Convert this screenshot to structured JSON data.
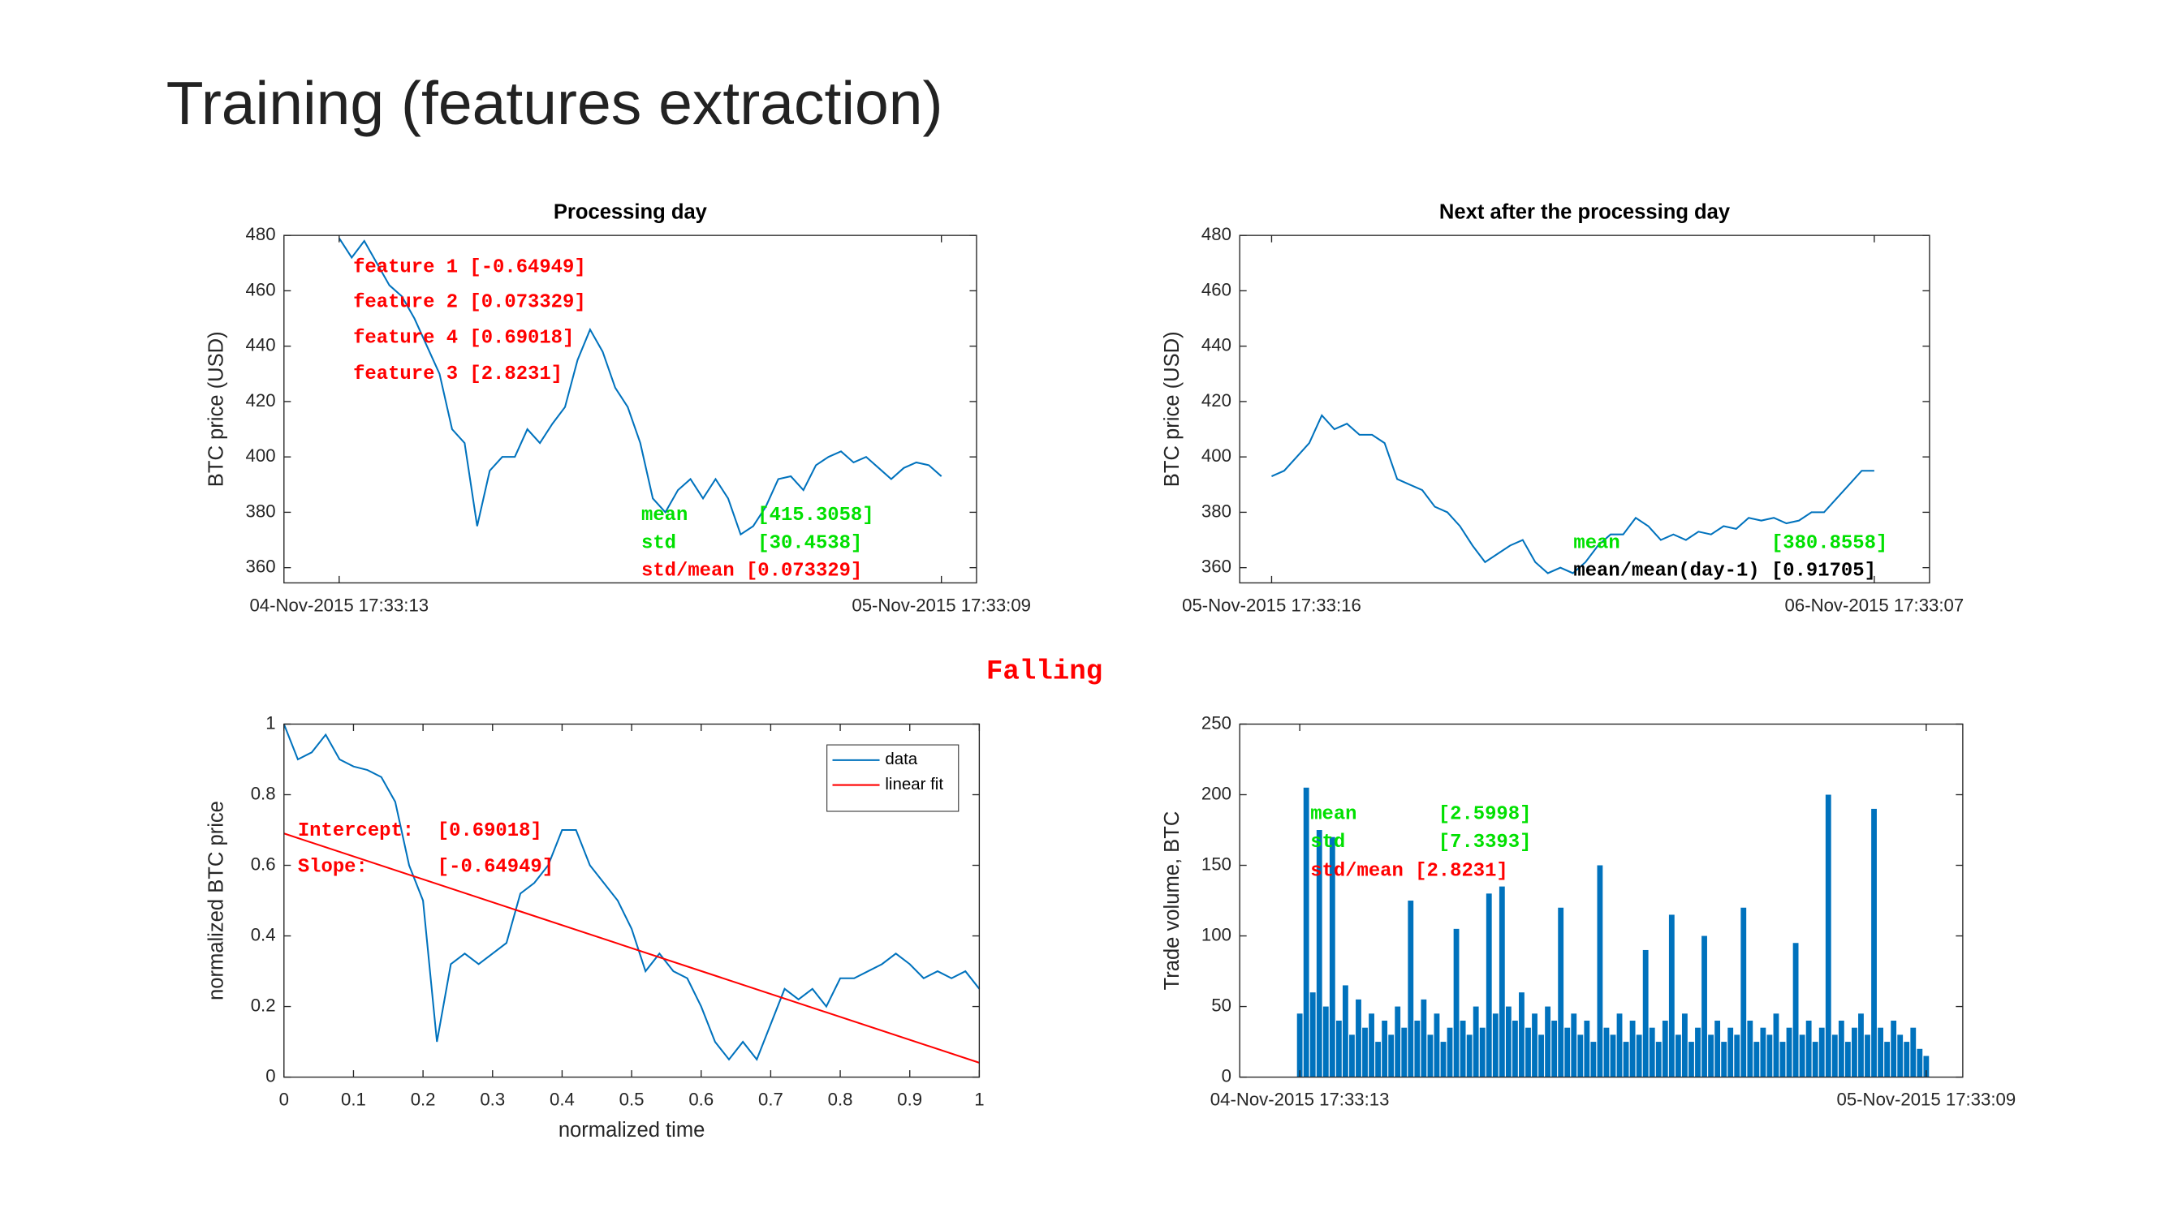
{
  "title": "Training (features extraction)",
  "label": "Falling",
  "chart_data": [
    {
      "type": "line",
      "title": "Processing day",
      "ylabel": "BTC price (USD)",
      "xlim": [
        -2.2,
        25.4
      ],
      "xticks": [
        {
          "value": 0,
          "label": "04-Nov-2015 17:33:13"
        },
        {
          "value": 24,
          "label": "05-Nov-2015 17:33:09"
        }
      ],
      "ylim": [
        354.5,
        480
      ],
      "yticks": [
        360,
        380,
        400,
        420,
        440,
        460,
        480
      ],
      "x": [
        0,
        0.5,
        1,
        1.5,
        2,
        2.5,
        3,
        3.5,
        4,
        4.5,
        5,
        5.5,
        6,
        6.5,
        7,
        7.5,
        8,
        8.5,
        9,
        9.5,
        10,
        10.5,
        11,
        11.5,
        12,
        12.5,
        13,
        13.5,
        14,
        14.5,
        15,
        15.5,
        16,
        16.5,
        17,
        17.5,
        18,
        18.5,
        19,
        19.5,
        20,
        20.5,
        21,
        21.5,
        22,
        22.5,
        23,
        23.5,
        24
      ],
      "series": [
        {
          "color": "#0072bd",
          "values": [
            479,
            472,
            478,
            470,
            462,
            458,
            450,
            440,
            430,
            410,
            405,
            375,
            395,
            400,
            400,
            410,
            405,
            412,
            418,
            435,
            446,
            438,
            425,
            418,
            405,
            385,
            380,
            388,
            392,
            385,
            392,
            385,
            372,
            375,
            382,
            392,
            393,
            388,
            397,
            400,
            402,
            398,
            400,
            396,
            392,
            396,
            398,
            397,
            393
          ]
        }
      ],
      "annotations": [
        {
          "text": "feature 1 [-0.64949]",
          "color": "#ff0000"
        },
        {
          "text": "feature 2 [0.073329]",
          "color": "#ff0000"
        },
        {
          "text": "feature 4 [0.69018]",
          "color": "#ff0000"
        },
        {
          "text": "feature 3 [2.8231]",
          "color": "#ff0000"
        },
        {
          "text": "mean      [415.3058]",
          "color": "#00e000"
        },
        {
          "text": "std       [30.4538]",
          "color": "#00e000"
        },
        {
          "text": "std/mean [0.073329]",
          "color": "#ff0000"
        }
      ]
    },
    {
      "type": "line",
      "title": "Next after the processing day",
      "ylabel": "BTC price (USD)",
      "xlim": [
        -1.27,
        26.2
      ],
      "xticks": [
        {
          "value": 0,
          "label": "05-Nov-2015 17:33:16"
        },
        {
          "value": 24,
          "label": "06-Nov-2015 17:33:07"
        }
      ],
      "ylim": [
        354.5,
        480
      ],
      "yticks": [
        360,
        380,
        400,
        420,
        440,
        460,
        480
      ],
      "x": [
        0,
        0.5,
        1,
        1.5,
        2,
        2.5,
        3,
        3.5,
        4,
        4.5,
        5,
        5.5,
        6,
        6.5,
        7,
        7.5,
        8,
        8.5,
        9,
        9.5,
        10,
        10.5,
        11,
        11.5,
        12,
        12.5,
        13,
        13.5,
        14,
        14.5,
        15,
        15.5,
        16,
        16.5,
        17,
        17.5,
        18,
        18.5,
        19,
        19.5,
        20,
        20.5,
        21,
        21.5,
        22,
        22.5,
        23,
        23.5,
        24
      ],
      "series": [
        {
          "color": "#0072bd",
          "values": [
            393,
            395,
            400,
            405,
            415,
            410,
            412,
            408,
            408,
            405,
            392,
            390,
            388,
            382,
            380,
            375,
            368,
            362,
            365,
            368,
            370,
            362,
            358,
            360,
            358,
            362,
            368,
            372,
            372,
            378,
            375,
            370,
            372,
            370,
            373,
            372,
            375,
            374,
            378,
            377,
            378,
            376,
            377,
            380,
            380,
            385,
            390,
            395,
            395
          ]
        }
      ],
      "annotations": [
        {
          "text": "mean             [380.8558]",
          "color": "#00e000"
        },
        {
          "text": "mean/mean(day-1) [0.91705]",
          "color": "#000000"
        }
      ]
    },
    {
      "type": "line",
      "xlabel": "normalized time",
      "ylabel": "normalized BTC price",
      "xlim": [
        0,
        1
      ],
      "xticks": [
        0,
        0.1,
        0.2,
        0.3,
        0.4,
        0.5,
        0.6,
        0.7,
        0.8,
        0.9,
        1
      ],
      "ylim": [
        0,
        1
      ],
      "yticks": [
        0,
        0.2,
        0.4,
        0.6,
        0.8,
        1
      ],
      "legend": "upper right",
      "x": [
        0,
        0.02,
        0.04,
        0.06,
        0.08,
        0.1,
        0.12,
        0.14,
        0.16,
        0.18,
        0.2,
        0.22,
        0.24,
        0.26,
        0.28,
        0.3,
        0.32,
        0.34,
        0.36,
        0.38,
        0.4,
        0.42,
        0.44,
        0.46,
        0.48,
        0.5,
        0.52,
        0.54,
        0.56,
        0.58,
        0.6,
        0.62,
        0.64,
        0.66,
        0.68,
        0.7,
        0.72,
        0.74,
        0.76,
        0.78,
        0.8,
        0.82,
        0.84,
        0.86,
        0.88,
        0.9,
        0.92,
        0.94,
        0.96,
        0.98,
        1
      ],
      "series": [
        {
          "name": "data",
          "color": "#0072bd",
          "values": [
            1.0,
            0.9,
            0.92,
            0.97,
            0.9,
            0.88,
            0.87,
            0.85,
            0.78,
            0.6,
            0.5,
            0.1,
            0.32,
            0.35,
            0.32,
            0.35,
            0.38,
            0.52,
            0.55,
            0.6,
            0.7,
            0.7,
            0.6,
            0.55,
            0.5,
            0.42,
            0.3,
            0.35,
            0.3,
            0.28,
            0.2,
            0.1,
            0.05,
            0.1,
            0.05,
            0.15,
            0.25,
            0.22,
            0.25,
            0.2,
            0.28,
            0.28,
            0.3,
            0.32,
            0.35,
            0.32,
            0.28,
            0.3,
            0.28,
            0.3,
            0.25
          ]
        },
        {
          "name": "linear fit",
          "color": "#ff0000",
          "x": [
            0,
            1
          ],
          "values": [
            0.69018,
            0.04069
          ]
        }
      ],
      "annotations": [
        {
          "text": "Intercept:  [0.69018]",
          "color": "#ff0000"
        },
        {
          "text": "Slope:      [-0.64949]",
          "color": "#ff0000"
        }
      ]
    },
    {
      "type": "bar",
      "ylabel": "Trade volume, BTC",
      "xlim": [
        -2.3,
        25.4
      ],
      "xticks": [
        {
          "value": 0,
          "label": "04-Nov-2015 17:33:13"
        },
        {
          "value": 24,
          "label": "05-Nov-2015 17:33:09"
        }
      ],
      "ylim": [
        0,
        250
      ],
      "yticks": [
        0,
        50,
        100,
        150,
        200,
        250
      ],
      "x": [
        0,
        0.25,
        0.5,
        0.75,
        1,
        1.25,
        1.5,
        1.75,
        2,
        2.25,
        2.5,
        2.75,
        3,
        3.25,
        3.5,
        3.75,
        4,
        4.25,
        4.5,
        4.75,
        5,
        5.25,
        5.5,
        5.75,
        6,
        6.25,
        6.5,
        6.75,
        7,
        7.25,
        7.5,
        7.75,
        8,
        8.25,
        8.5,
        8.75,
        9,
        9.25,
        9.5,
        9.75,
        10,
        10.25,
        10.5,
        10.75,
        11,
        11.25,
        11.5,
        11.75,
        12,
        12.25,
        12.5,
        12.75,
        13,
        13.25,
        13.5,
        13.75,
        14,
        14.25,
        14.5,
        14.75,
        15,
        15.25,
        15.5,
        15.75,
        16,
        16.25,
        16.5,
        16.75,
        17,
        17.25,
        17.5,
        17.75,
        18,
        18.25,
        18.5,
        18.75,
        19,
        19.25,
        19.5,
        19.75,
        20,
        20.25,
        20.5,
        20.75,
        21,
        21.25,
        21.5,
        21.75,
        22,
        22.25,
        22.5,
        22.75,
        23,
        23.25,
        23.5,
        23.75,
        24
      ],
      "series": [
        {
          "color": "#0072bd",
          "values": [
            45,
            205,
            60,
            175,
            50,
            170,
            40,
            65,
            30,
            55,
            35,
            45,
            25,
            40,
            30,
            50,
            35,
            125,
            40,
            55,
            30,
            45,
            25,
            35,
            105,
            40,
            30,
            50,
            35,
            130,
            45,
            135,
            50,
            40,
            60,
            35,
            45,
            30,
            50,
            40,
            120,
            35,
            45,
            30,
            40,
            25,
            150,
            35,
            30,
            45,
            25,
            40,
            30,
            90,
            35,
            25,
            40,
            115,
            30,
            45,
            25,
            35,
            100,
            30,
            40,
            25,
            35,
            30,
            120,
            40,
            25,
            35,
            30,
            45,
            25,
            35,
            95,
            30,
            40,
            25,
            35,
            200,
            30,
            40,
            25,
            35,
            45,
            30,
            190,
            35,
            25,
            40,
            30,
            25,
            35,
            20,
            15
          ]
        }
      ],
      "annotations": [
        {
          "text": "mean       [2.5998]",
          "color": "#00e000"
        },
        {
          "text": "std        [7.3393]",
          "color": "#00e000"
        },
        {
          "text": "std/mean [2.8231]",
          "color": "#ff0000"
        }
      ]
    }
  ]
}
